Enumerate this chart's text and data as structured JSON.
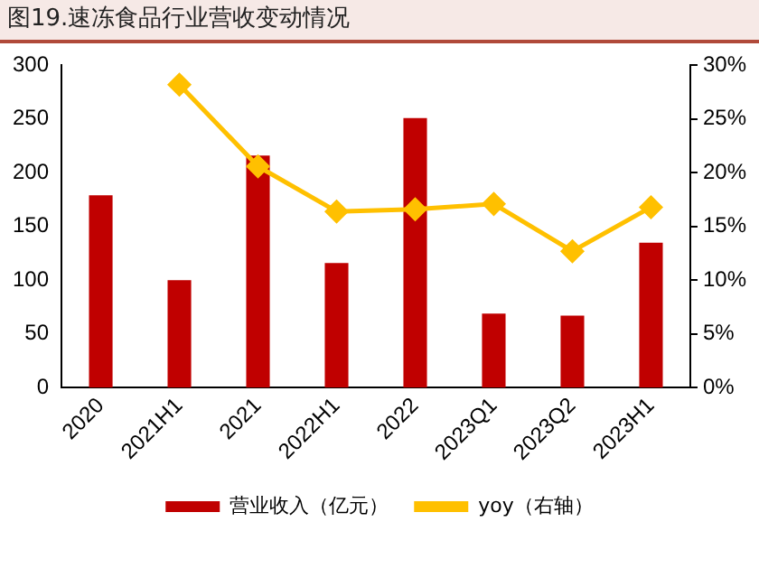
{
  "chart_data": {
    "type": "bar",
    "title": "图19.速冻食品行业营收变动情况",
    "categories": [
      "2020",
      "2021H1",
      "2021",
      "2022H1",
      "2022",
      "2023Q1",
      "2023Q2",
      "2023H1"
    ],
    "series": [
      {
        "name": "营业收入（亿元）",
        "color": "#c00000",
        "values": [
          179,
          100,
          216,
          116,
          251,
          69,
          67,
          135
        ]
      },
      {
        "name": "yoy（右轴）",
        "type": "line",
        "axis": "y2",
        "color": "#ffc000",
        "values": [
          null,
          28.2,
          20.6,
          16.4,
          16.6,
          17.1,
          12.7,
          16.8
        ]
      }
    ],
    "ylim": [
      0,
      300
    ],
    "yticks": [
      0,
      50,
      100,
      150,
      200,
      250,
      300
    ],
    "y2lim": [
      0,
      30
    ],
    "y2ticks": [
      {
        "value": 0,
        "label": "0%"
      },
      {
        "value": 5,
        "label": "5%"
      },
      {
        "value": 10,
        "label": "10%"
      },
      {
        "value": 15,
        "label": "15%"
      },
      {
        "value": 20,
        "label": "20%"
      },
      {
        "value": 25,
        "label": "25%"
      },
      {
        "value": 30,
        "label": "30%"
      }
    ],
    "grid": false,
    "legend": "bottom",
    "marker": "diamond",
    "line_style": "solid"
  }
}
